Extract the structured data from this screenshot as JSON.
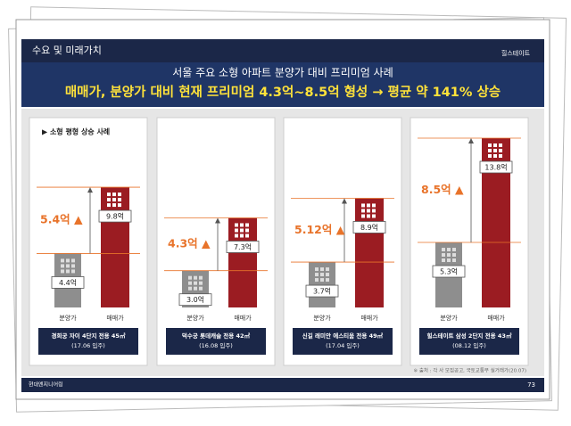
{
  "header": {
    "section": "수요 및 미래가치",
    "logo": "힐스테이트",
    "subtitle": "서울 주요 소형 아파트 분양가 대비 프리미엄 사례",
    "headline": "매매가, 분양가 대비 현재 프리미엄 4.3억~8.5억 형성 → 평균 약 141% 상승"
  },
  "section_label": "▶ 소형 평형 상승 사례",
  "source": "※ 출처 : 각 사 모집공고, 국토교통부 실거래가(20.07)",
  "footer": {
    "company": "현대엔지니어링",
    "page": "73"
  },
  "chart_data": [
    {
      "type": "bar",
      "categories": [
        "분양가",
        "매매가"
      ],
      "values": [
        4.4,
        9.8
      ],
      "value_labels": [
        "4.4억",
        "9.8억"
      ],
      "colors": [
        "#8e8e8e",
        "#9b1c22"
      ],
      "annotation": "5.4억 ▲",
      "caption": [
        "경희궁 자이 4단지 전용 45㎡",
        "(17.06 입주)"
      ]
    },
    {
      "type": "bar",
      "categories": [
        "분양가",
        "매매가"
      ],
      "values": [
        3.0,
        7.3
      ],
      "value_labels": [
        "3.0억",
        "7.3억"
      ],
      "colors": [
        "#8e8e8e",
        "#9b1c22"
      ],
      "annotation": "4.3억 ▲",
      "caption": [
        "덕수궁 롯데캐슬 전용 42㎡",
        "(16.08 입주)"
      ]
    },
    {
      "type": "bar",
      "categories": [
        "분양가",
        "매매가"
      ],
      "values": [
        3.7,
        8.9
      ],
      "value_labels": [
        "3.7억",
        "8.9억"
      ],
      "colors": [
        "#8e8e8e",
        "#9b1c22"
      ],
      "annotation": "5.12억 ▲",
      "caption": [
        "신길 래미안 에스티움 전용 49㎡",
        "(17.04 입주)"
      ]
    },
    {
      "type": "bar",
      "categories": [
        "분양가",
        "매매가"
      ],
      "values": [
        5.3,
        13.8
      ],
      "value_labels": [
        "5.3억",
        "13.8억"
      ],
      "colors": [
        "#8e8e8e",
        "#9b1c22"
      ],
      "annotation": "8.5억 ▲",
      "caption": [
        "힐스테이트 삼성 2단지 전용 43㎡",
        "(08.12 입주)"
      ]
    }
  ]
}
